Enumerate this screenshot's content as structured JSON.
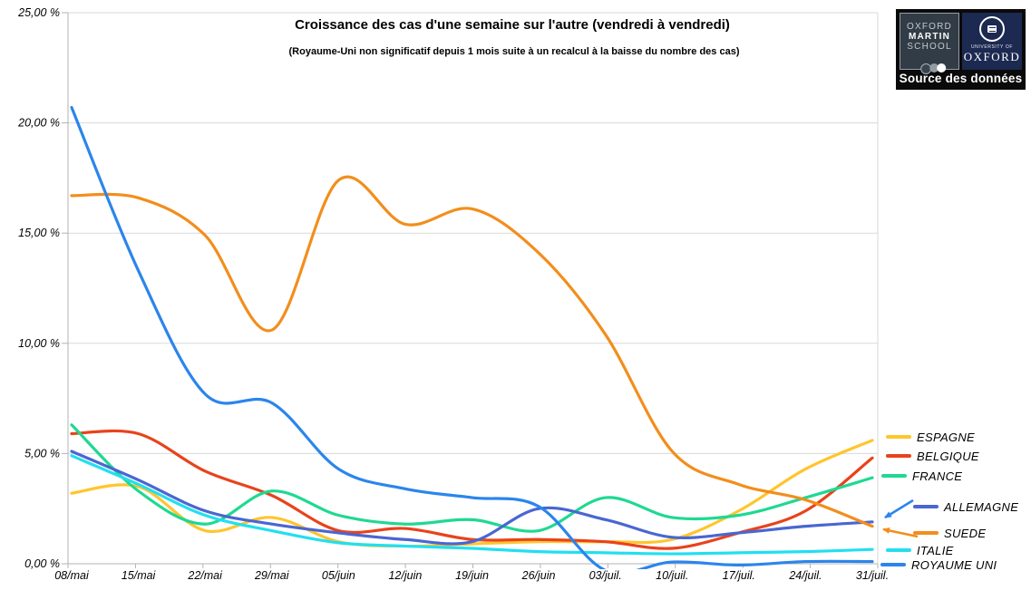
{
  "header": {
    "title": "Croissance des cas d'une semaine sur l'autre (vendredi à vendredi)",
    "subtitle": "(Royaume-Uni non significatif depuis 1 mois suite à un recalcul à la baisse du nombre des cas)"
  },
  "source_box": {
    "oms_line1": "OXFORD",
    "oms_line2": "MARTIN",
    "oms_line3": "SCHOOL",
    "university_small": "UNIVERSITY OF",
    "university_name": "OXFORD",
    "caption": "Source des données"
  },
  "chart_data": {
    "type": "line",
    "title": "Croissance des cas d'une semaine sur l'autre (vendredi à vendredi)",
    "subtitle": "(Royaume-Uni non significatif depuis 1 mois suite à un recalcul à la baisse du nombre des cas)",
    "categories": [
      "08/mai",
      "15/mai",
      "22/mai",
      "29/mai",
      "05/juin",
      "12/juin",
      "19/juin",
      "26/juin",
      "03/juil.",
      "10/juil.",
      "17/juil.",
      "24/juil.",
      "31/juil."
    ],
    "y_axis": {
      "min": 0,
      "max": 25,
      "tick_step": 5,
      "tick_labels": [
        "0,00 %",
        "5,00 %",
        "10,00 %",
        "15,00 %",
        "20,00 %",
        "25,00 %"
      ],
      "unit": "percent"
    },
    "grid": true,
    "legend_position": "right",
    "colors": {
      "grid": "#dadada",
      "axis": "#b3b3b3",
      "text": "#000000"
    },
    "series": [
      {
        "name": "ESPAGNE",
        "color": "#FFC52E",
        "values": [
          3.2,
          3.5,
          1.5,
          2.1,
          1.0,
          0.8,
          0.9,
          1.0,
          1.0,
          1.1,
          2.4,
          4.3,
          5.6
        ]
      },
      {
        "name": "BELGIQUE",
        "color": "#E8431C",
        "values": [
          5.9,
          5.9,
          4.2,
          3.1,
          1.5,
          1.6,
          1.1,
          1.1,
          1.0,
          0.7,
          1.4,
          2.4,
          4.8
        ]
      },
      {
        "name": "FRANCE",
        "color": "#1ED992",
        "values": [
          6.3,
          3.3,
          1.8,
          3.3,
          2.2,
          1.8,
          2.0,
          1.5,
          3.0,
          2.1,
          2.2,
          3.0,
          3.9
        ]
      },
      {
        "name": "ALLEMAGNE",
        "color": "#4A66D2",
        "values": [
          5.1,
          3.8,
          2.4,
          1.8,
          1.4,
          1.1,
          1.0,
          2.5,
          2.0,
          1.2,
          1.4,
          1.7,
          1.9
        ]
      },
      {
        "name": "SUEDE",
        "color": "#F28E1C",
        "values": [
          16.7,
          16.6,
          14.9,
          10.6,
          17.4,
          15.4,
          16.1,
          14.1,
          10.4,
          5.1,
          3.6,
          2.9,
          1.7
        ]
      },
      {
        "name": "ITALIE",
        "color": "#22DFF0",
        "values": [
          4.9,
          3.6,
          2.2,
          1.5,
          0.95,
          0.8,
          0.7,
          0.55,
          0.5,
          0.45,
          0.5,
          0.55,
          0.65
        ]
      },
      {
        "name": "ROYAUME UNI",
        "color": "#2B85EC",
        "values": [
          20.7,
          13.3,
          7.7,
          7.3,
          4.3,
          3.4,
          3.0,
          2.6,
          -0.3,
          0.08,
          -0.06,
          0.1,
          0.1
        ]
      }
    ],
    "annotations": [
      {
        "type": "arrow",
        "color": "#2B85EC",
        "points_to": "ALLEMAGNE"
      },
      {
        "type": "arrow",
        "color": "#F28E1C",
        "points_to": "SUEDE"
      }
    ]
  }
}
